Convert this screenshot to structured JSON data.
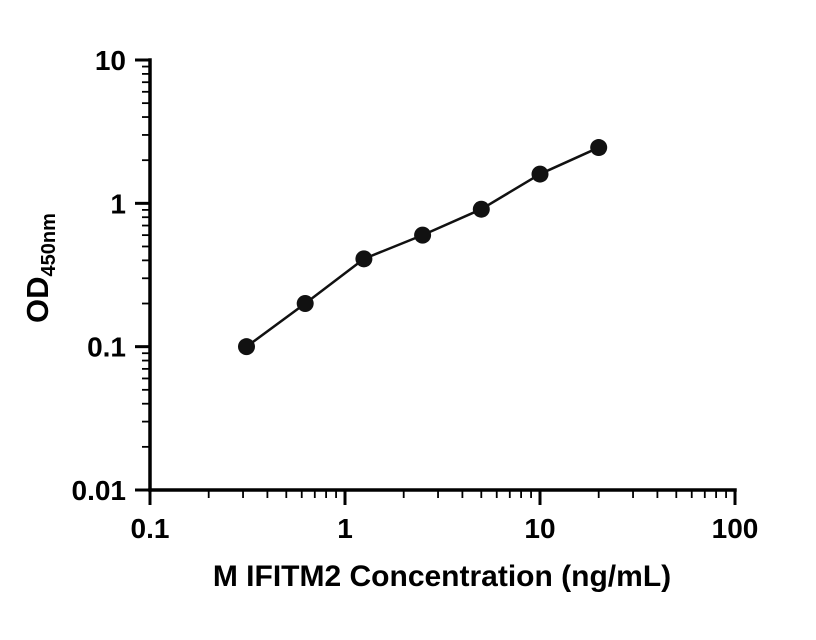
{
  "chart_data": {
    "type": "scatter",
    "title": "",
    "xlabel": "M IFITM2 Concentration (ng/mL)",
    "ylabel_main": "OD",
    "ylabel_sub": "450nm",
    "x_scale": "log",
    "y_scale": "log",
    "xlim": [
      0.1,
      100
    ],
    "ylim": [
      0.01,
      10
    ],
    "x_ticks": [
      0.1,
      1,
      10,
      100
    ],
    "x_tick_labels": [
      "0.1",
      "1",
      "10",
      "100"
    ],
    "y_ticks": [
      0.01,
      0.1,
      1,
      10
    ],
    "y_tick_labels": [
      "0.01",
      "0.1",
      "1",
      "10"
    ],
    "x": [
      0.3125,
      0.625,
      1.25,
      2.5,
      5,
      10,
      20
    ],
    "y": [
      0.1,
      0.2,
      0.41,
      0.6,
      0.91,
      1.6,
      2.45
    ],
    "line": true,
    "grid": false,
    "legend": null,
    "marker_color": "#111111",
    "line_color": "#111111",
    "axis_color": "#000000"
  }
}
